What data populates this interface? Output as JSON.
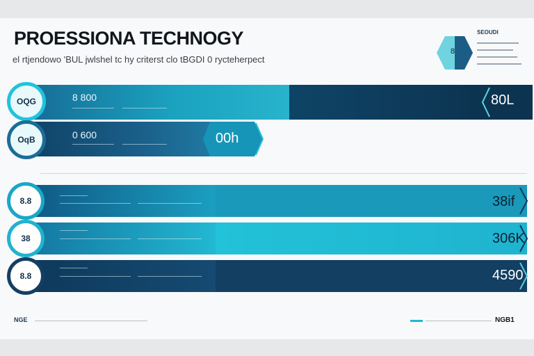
{
  "header": {
    "title": "PROESSIONA TECHNOGY",
    "subtitle": "el rtjendowo 'BUL jwlshel tc hy criterst clo tBGDI 0 rycteherpect"
  },
  "legend": {
    "heading": "SEOUDI",
    "badge": "8"
  },
  "rows": [
    {
      "badge": "OQG",
      "number": "8 800",
      "value": "80L",
      "color": "#1aa2bf"
    },
    {
      "badge": "OqB",
      "number": "0 600",
      "value": "00h",
      "color": "#1a5f8a"
    },
    {
      "badge": "8.8",
      "number": "",
      "value": "38if",
      "color": "#1b9fc0"
    },
    {
      "badge": "38",
      "number": "",
      "value": "306K",
      "color": "#22b8d2"
    },
    {
      "badge": "8.8",
      "number": "",
      "value": "4590",
      "color": "#164a72"
    }
  ],
  "footer": {
    "left": "NGE",
    "right": "NGB1"
  }
}
